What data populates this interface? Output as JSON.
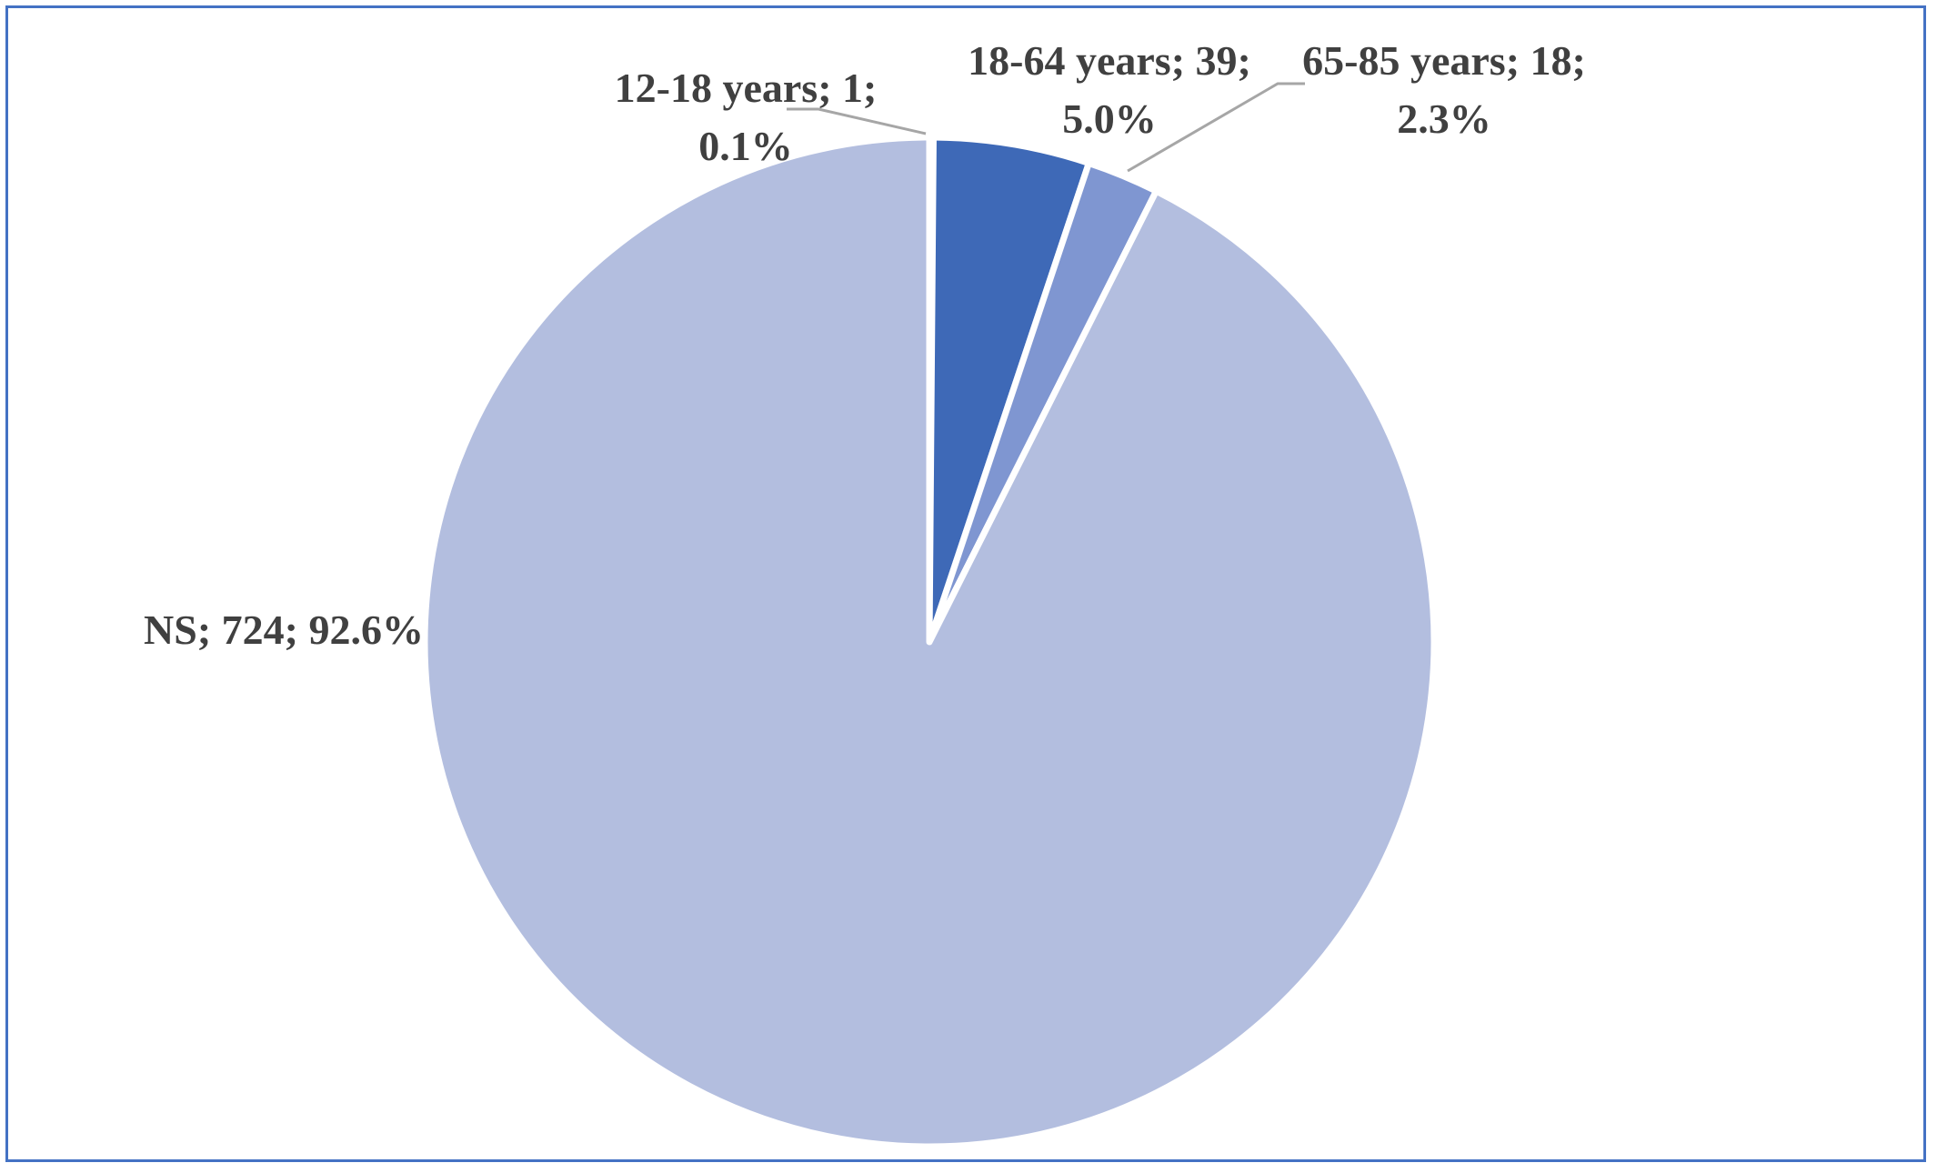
{
  "chart_data": {
    "type": "pie",
    "title": "",
    "start_angle_deg": 0,
    "direction": "clockwise",
    "slices": [
      {
        "label": "12-18 years",
        "value": 1,
        "percent": "0.1%",
        "color": "#2f5597",
        "label_lines": [
          "12-18 years; 1;",
          "0.1%"
        ]
      },
      {
        "label": "18-64 years",
        "value": 39,
        "percent": "5.0%",
        "color": "#3e69b7",
        "label_lines": [
          "18-64 years; 39;",
          "5.0%"
        ]
      },
      {
        "label": "65-85 years",
        "value": 18,
        "percent": "2.3%",
        "color": "#7f96d1",
        "label_lines": [
          "65-85 years; 18;",
          "2.3%"
        ]
      },
      {
        "label": "NS",
        "value": 724,
        "percent": "92.6%",
        "color": "#b3bedf",
        "label_lines": [
          "NS; 724; 92.6%"
        ]
      }
    ],
    "slice_border_color": "#ffffff",
    "label_color": "#404040",
    "leader_line_color": "#a6a6a6",
    "frame_color": "#4472c4"
  }
}
